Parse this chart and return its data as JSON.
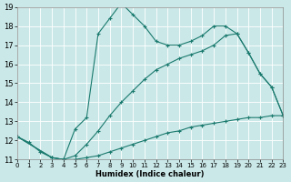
{
  "xlabel": "Humidex (Indice chaleur)",
  "bg_color": "#cbe8e8",
  "grid_color": "#b0d8d8",
  "line_color": "#1a7a6e",
  "xlim": [
    0,
    23
  ],
  "ylim": [
    11,
    19
  ],
  "xticks": [
    0,
    1,
    2,
    3,
    4,
    5,
    6,
    7,
    8,
    9,
    10,
    11,
    12,
    13,
    14,
    15,
    16,
    17,
    18,
    19,
    20,
    21,
    22,
    23
  ],
  "yticks": [
    11,
    12,
    13,
    14,
    15,
    16,
    17,
    18,
    19
  ],
  "curve1_x": [
    0,
    1,
    2,
    3,
    4,
    5,
    6,
    7,
    8,
    9,
    10,
    11,
    12,
    13,
    14,
    15,
    16,
    17,
    18,
    19,
    20,
    21,
    22,
    23
  ],
  "curve1_y": [
    12.2,
    11.9,
    11.4,
    11.1,
    11.0,
    12.6,
    13.2,
    17.6,
    18.4,
    19.2,
    18.6,
    18.0,
    17.2,
    17.0,
    17.0,
    17.2,
    17.5,
    18.0,
    18.0,
    17.6,
    16.6,
    15.5,
    14.8,
    13.3
  ],
  "curve2_x": [
    0,
    3,
    4,
    5,
    6,
    7,
    8,
    9,
    10,
    11,
    12,
    13,
    14,
    15,
    16,
    17,
    18,
    19,
    20,
    21,
    22,
    23
  ],
  "curve2_y": [
    12.2,
    11.1,
    11.0,
    11.2,
    11.8,
    12.5,
    13.3,
    14.0,
    14.6,
    15.2,
    15.7,
    16.0,
    16.3,
    16.5,
    16.7,
    17.0,
    17.5,
    17.6,
    16.6,
    15.5,
    14.8,
    13.3
  ],
  "curve3_x": [
    0,
    3,
    4,
    5,
    6,
    7,
    8,
    9,
    10,
    11,
    12,
    13,
    14,
    15,
    16,
    17,
    18,
    19,
    20,
    21,
    22,
    23
  ],
  "curve3_y": [
    12.2,
    11.1,
    11.0,
    11.0,
    11.1,
    11.2,
    11.4,
    11.6,
    11.8,
    12.0,
    12.2,
    12.4,
    12.5,
    12.7,
    12.8,
    12.9,
    13.0,
    13.1,
    13.2,
    13.2,
    13.3,
    13.3
  ]
}
